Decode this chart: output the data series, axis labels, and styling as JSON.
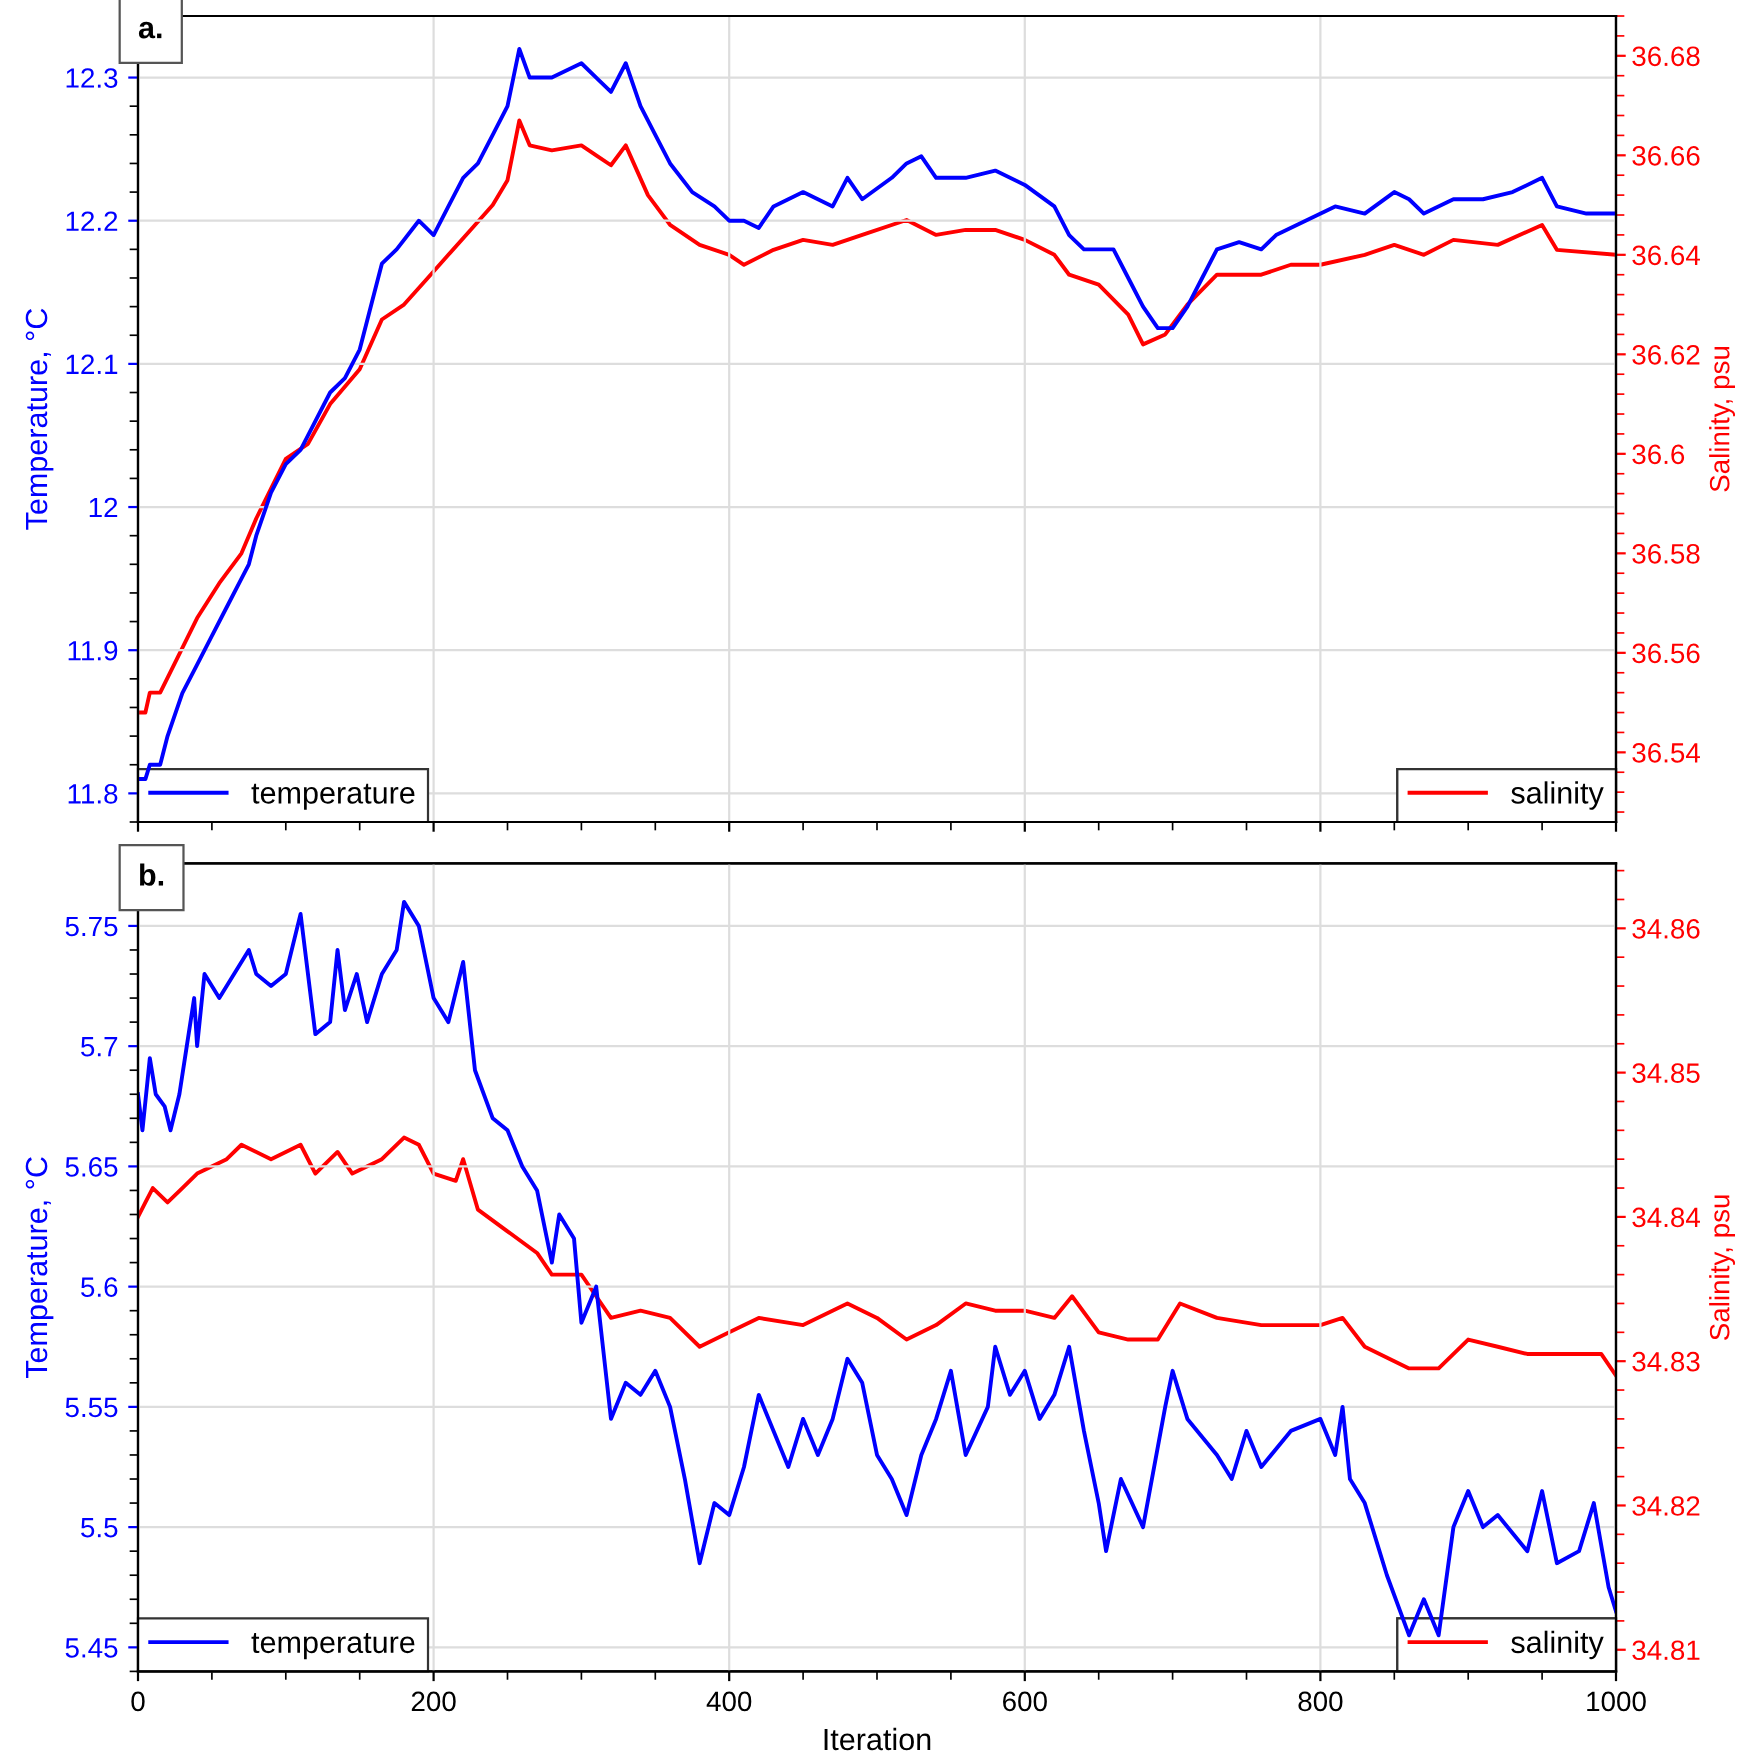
{
  "chart_data": [
    {
      "type": "line",
      "title": "a.",
      "ylabel": "Temperature, °C",
      "y2label": "Salinity, psu",
      "xlim": [
        0,
        1000
      ],
      "xticks": [
        0,
        200,
        400,
        600,
        800,
        1000
      ],
      "ylim": [
        11.78,
        12.343
      ],
      "yticks": [
        11.8,
        11.9,
        12,
        12.1,
        12.2,
        12.3
      ],
      "y2lim": [
        36.526,
        36.688
      ],
      "y2ticks": [
        36.54,
        36.56,
        36.58,
        36.6,
        36.62,
        36.64,
        36.66,
        36.68
      ],
      "grid": true,
      "legend": "bottom",
      "tick_labels": "y",
      "series": [
        {
          "name": "temperature",
          "color": "#0000ff",
          "axis": "y",
          "x": [
            0,
            5,
            8,
            15,
            20,
            30,
            40,
            50,
            60,
            70,
            75,
            80,
            90,
            100,
            110,
            120,
            130,
            140,
            150,
            160,
            165,
            175,
            190,
            200,
            210,
            220,
            230,
            240,
            250,
            258,
            265,
            280,
            300,
            310,
            320,
            330,
            340,
            350,
            360,
            375,
            390,
            400,
            410,
            420,
            430,
            450,
            470,
            480,
            490,
            510,
            520,
            530,
            540,
            560,
            580,
            600,
            620,
            630,
            640,
            660,
            670,
            680,
            690,
            700,
            710,
            720,
            730,
            745,
            760,
            770,
            790,
            810,
            830,
            850,
            860,
            870,
            890,
            910,
            930,
            950,
            960,
            980,
            1000
          ],
          "values": [
            11.81,
            11.81,
            11.82,
            11.82,
            11.84,
            11.87,
            11.89,
            11.91,
            11.93,
            11.95,
            11.96,
            11.98,
            12.01,
            12.03,
            12.04,
            12.06,
            12.08,
            12.09,
            12.11,
            12.15,
            12.17,
            12.18,
            12.2,
            12.19,
            12.21,
            12.23,
            12.24,
            12.26,
            12.28,
            12.32,
            12.3,
            12.3,
            12.31,
            12.3,
            12.29,
            12.31,
            12.28,
            12.26,
            12.24,
            12.22,
            12.21,
            12.2,
            12.2,
            12.195,
            12.21,
            12.22,
            12.21,
            12.23,
            12.215,
            12.23,
            12.24,
            12.245,
            12.23,
            12.23,
            12.235,
            12.225,
            12.21,
            12.19,
            12.18,
            12.18,
            12.16,
            12.14,
            12.125,
            12.125,
            12.14,
            12.16,
            12.18,
            12.185,
            12.18,
            12.19,
            12.2,
            12.21,
            12.205,
            12.22,
            12.215,
            12.205,
            12.215,
            12.215,
            12.22,
            12.23,
            12.21,
            12.205,
            12.205
          ]
        },
        {
          "name": "salinity",
          "color": "#ff0000",
          "axis": "y2",
          "x": [
            0,
            5,
            8,
            15,
            25,
            40,
            55,
            70,
            80,
            90,
            100,
            115,
            130,
            150,
            165,
            180,
            195,
            210,
            225,
            240,
            250,
            258,
            265,
            280,
            300,
            310,
            320,
            330,
            345,
            360,
            380,
            400,
            410,
            430,
            450,
            470,
            490,
            520,
            540,
            560,
            580,
            600,
            620,
            630,
            650,
            670,
            680,
            695,
            710,
            730,
            760,
            780,
            800,
            830,
            850,
            870,
            890,
            920,
            950,
            960,
            1000
          ],
          "values": [
            36.548,
            36.548,
            36.552,
            36.552,
            36.558,
            36.567,
            36.574,
            36.58,
            36.587,
            36.593,
            36.599,
            36.602,
            36.61,
            36.617,
            36.627,
            36.63,
            36.635,
            36.64,
            36.645,
            36.65,
            36.655,
            36.667,
            36.662,
            36.661,
            36.662,
            36.66,
            36.658,
            36.662,
            36.652,
            36.646,
            36.642,
            36.64,
            36.638,
            36.641,
            36.643,
            36.642,
            36.644,
            36.647,
            36.644,
            36.645,
            36.645,
            36.643,
            36.64,
            36.636,
            36.634,
            36.628,
            36.622,
            36.624,
            36.63,
            36.636,
            36.636,
            36.638,
            36.638,
            36.64,
            36.642,
            36.64,
            36.643,
            36.642,
            36.646,
            36.641,
            36.64
          ]
        }
      ]
    },
    {
      "type": "line",
      "title": "b.",
      "xlabel": "Iteration",
      "ylabel": "Temperature, °C",
      "y2label": "Salinity, psu",
      "xlim": [
        0,
        1000
      ],
      "xticks": [
        0,
        200,
        400,
        600,
        800,
        1000
      ],
      "ylim": [
        5.44,
        5.776
      ],
      "yticks": [
        5.45,
        5.5,
        5.55,
        5.6,
        5.65,
        5.7,
        5.75
      ],
      "y2lim": [
        34.8085,
        34.8645
      ],
      "y2ticks": [
        34.81,
        34.82,
        34.83,
        34.84,
        34.85,
        34.86
      ],
      "grid": true,
      "legend": "bottom",
      "series": [
        {
          "name": "temperature",
          "color": "#0000ff",
          "axis": "y",
          "x": [
            0,
            3,
            8,
            12,
            18,
            22,
            28,
            33,
            38,
            40,
            45,
            55,
            65,
            75,
            80,
            90,
            100,
            110,
            120,
            130,
            135,
            140,
            148,
            155,
            165,
            175,
            180,
            190,
            200,
            210,
            220,
            228,
            240,
            250,
            260,
            270,
            280,
            285,
            295,
            300,
            310,
            320,
            330,
            340,
            350,
            360,
            370,
            380,
            390,
            400,
            410,
            420,
            430,
            440,
            450,
            460,
            470,
            480,
            490,
            500,
            510,
            520,
            530,
            540,
            550,
            560,
            575,
            580,
            590,
            600,
            610,
            620,
            630,
            640,
            650,
            655,
            665,
            680,
            695,
            700,
            710,
            730,
            740,
            750,
            760,
            780,
            800,
            810,
            815,
            820,
            830,
            845,
            860,
            870,
            880,
            890,
            900,
            910,
            920,
            940,
            950,
            960,
            975,
            985,
            995,
            1000
          ],
          "values": [
            5.68,
            5.665,
            5.695,
            5.68,
            5.675,
            5.665,
            5.68,
            5.7,
            5.72,
            5.7,
            5.73,
            5.72,
            5.73,
            5.74,
            5.73,
            5.725,
            5.73,
            5.755,
            5.705,
            5.71,
            5.74,
            5.715,
            5.73,
            5.71,
            5.73,
            5.74,
            5.76,
            5.75,
            5.72,
            5.71,
            5.735,
            5.69,
            5.67,
            5.665,
            5.65,
            5.64,
            5.61,
            5.63,
            5.62,
            5.585,
            5.6,
            5.545,
            5.56,
            5.555,
            5.565,
            5.55,
            5.52,
            5.485,
            5.51,
            5.505,
            5.525,
            5.555,
            5.54,
            5.525,
            5.545,
            5.53,
            5.545,
            5.57,
            5.56,
            5.53,
            5.52,
            5.505,
            5.53,
            5.545,
            5.565,
            5.53,
            5.55,
            5.575,
            5.555,
            5.565,
            5.545,
            5.555,
            5.575,
            5.54,
            5.51,
            5.49,
            5.52,
            5.5,
            5.55,
            5.565,
            5.545,
            5.53,
            5.52,
            5.54,
            5.525,
            5.54,
            5.545,
            5.53,
            5.55,
            5.52,
            5.51,
            5.48,
            5.455,
            5.47,
            5.455,
            5.5,
            5.515,
            5.5,
            5.505,
            5.49,
            5.515,
            5.485,
            5.49,
            5.51,
            5.475,
            5.465
          ]
        },
        {
          "name": "salinity",
          "color": "#ff0000",
          "axis": "y2",
          "x": [
            0,
            5,
            10,
            20,
            30,
            40,
            60,
            70,
            90,
            110,
            120,
            135,
            145,
            165,
            180,
            190,
            200,
            215,
            220,
            230,
            250,
            270,
            280,
            290,
            300,
            310,
            320,
            340,
            360,
            380,
            400,
            420,
            450,
            480,
            500,
            520,
            540,
            560,
            580,
            600,
            620,
            632,
            650,
            670,
            690,
            705,
            730,
            760,
            800,
            815,
            830,
            850,
            860,
            880,
            900,
            920,
            940,
            970,
            990,
            1000
          ],
          "values": [
            34.84,
            34.841,
            34.842,
            34.841,
            34.842,
            34.843,
            34.844,
            34.845,
            34.844,
            34.845,
            34.843,
            34.8445,
            34.843,
            34.844,
            34.8455,
            34.845,
            34.843,
            34.8425,
            34.844,
            34.8405,
            34.839,
            34.8375,
            34.836,
            34.836,
            34.836,
            34.8345,
            34.833,
            34.8335,
            34.833,
            34.831,
            34.832,
            34.833,
            34.8325,
            34.834,
            34.833,
            34.8315,
            34.8325,
            34.834,
            34.8335,
            34.8335,
            34.833,
            34.8345,
            34.832,
            34.8315,
            34.8315,
            34.834,
            34.833,
            34.8325,
            34.8325,
            34.833,
            34.831,
            34.83,
            34.8295,
            34.8295,
            34.8315,
            34.831,
            34.8305,
            34.8305,
            34.8305,
            34.829
          ]
        }
      ]
    }
  ]
}
